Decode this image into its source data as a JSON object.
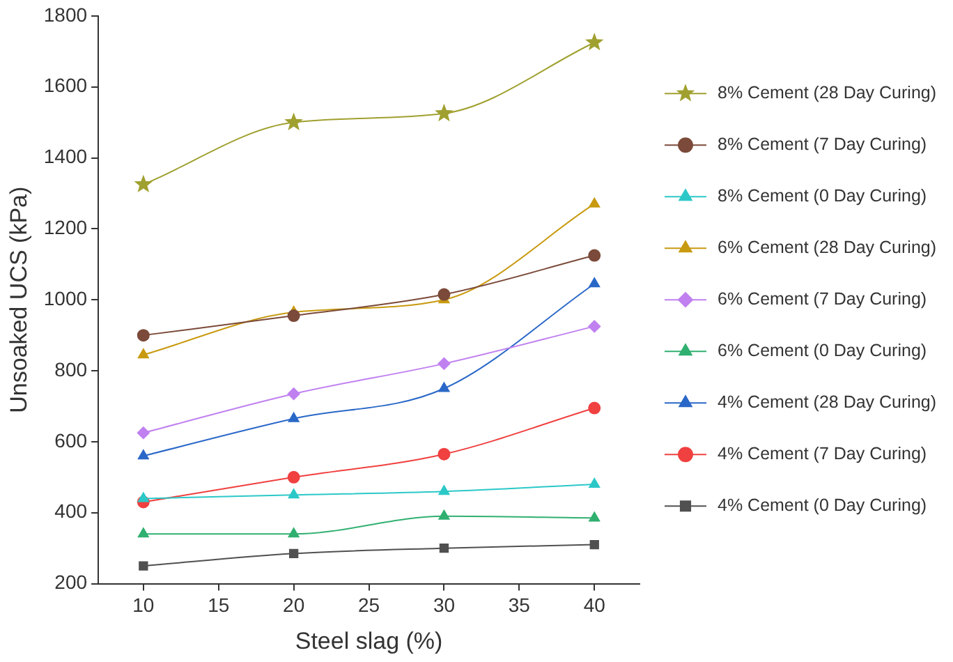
{
  "chart_data": {
    "type": "line",
    "xlabel": "Steel slag (%)",
    "ylabel": "Unsoaked UCS (kPa)",
    "x": [
      10,
      20,
      30,
      40
    ],
    "xlim": [
      7,
      43
    ],
    "xticks": [
      10,
      15,
      20,
      25,
      30,
      35,
      40
    ],
    "ylim": [
      200,
      1800
    ],
    "yticks": [
      200,
      400,
      600,
      800,
      1000,
      1200,
      1400,
      1600,
      1800
    ],
    "grid": false,
    "legend": "right",
    "series": [
      {
        "name": "8% Cement (28 Day Curing)",
        "color": "#a0a030",
        "marker": "star",
        "values": [
          1325,
          1500,
          1525,
          1725
        ]
      },
      {
        "name": "8% Cement (7 Day Curing)",
        "color": "#7b4a3a",
        "marker": "circle",
        "values": [
          900,
          955,
          1015,
          1125
        ]
      },
      {
        "name": "8% Cement (0 Day Curing)",
        "color": "#2cc8c8",
        "marker": "triangle",
        "values": [
          440,
          450,
          460,
          480
        ]
      },
      {
        "name": "6% Cement (28 Day Curing)",
        "color": "#c89a10",
        "marker": "triangle",
        "values": [
          845,
          965,
          1000,
          1270
        ]
      },
      {
        "name": "6% Cement (7 Day Curing)",
        "color": "#c080f0",
        "marker": "diamond",
        "values": [
          625,
          735,
          820,
          925
        ]
      },
      {
        "name": "6% Cement (0 Day Curing)",
        "color": "#30b070",
        "marker": "triangle",
        "values": [
          340,
          340,
          390,
          385
        ]
      },
      {
        "name": "4% Cement (28 Day Curing)",
        "color": "#2a68c8",
        "marker": "triangle",
        "values": [
          560,
          665,
          750,
          1045
        ]
      },
      {
        "name": "4% Cement (7 Day Curing)",
        "color": "#f04040",
        "marker": "circle",
        "values": [
          430,
          500,
          565,
          695
        ]
      },
      {
        "name": "4% Cement (0 Day Curing)",
        "color": "#505050",
        "marker": "square",
        "values": [
          250,
          285,
          300,
          310
        ]
      }
    ]
  }
}
